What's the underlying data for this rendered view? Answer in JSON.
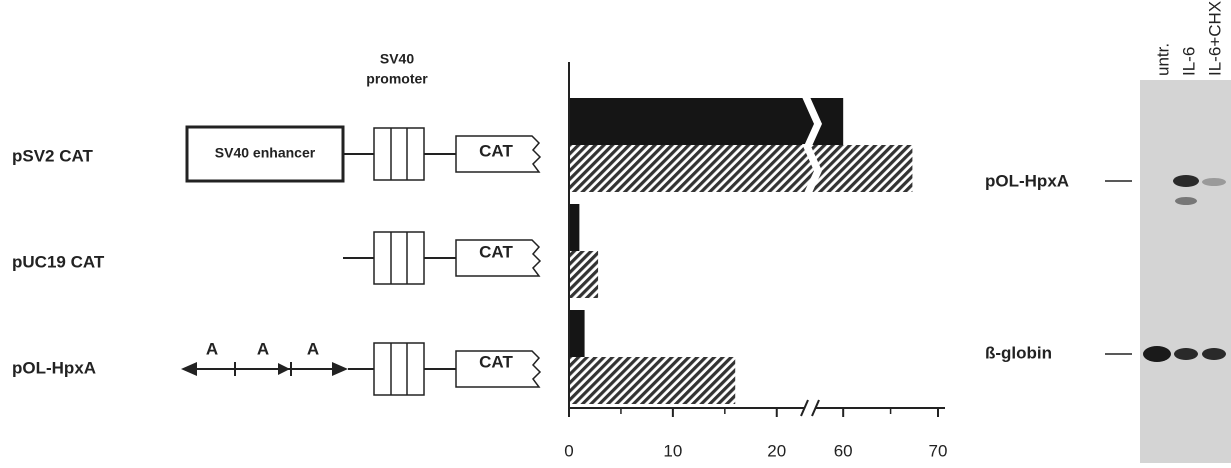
{
  "chart_data": {
    "type": "bar",
    "orientation": "horizontal",
    "categories": [
      "pSV2  CAT",
      "pUC19  CAT",
      "pOL-HpxA"
    ],
    "series": [
      {
        "color": "#151515",
        "hatch": false,
        "values": [
          60,
          1,
          1.5
        ]
      },
      {
        "color": "#333333",
        "hatch": true,
        "values": [
          67.3,
          2.8,
          16
        ]
      }
    ],
    "xlim": [
      0,
      70
    ],
    "xbreak": [
      23.2,
      56.5
    ],
    "xticks": [
      0,
      10,
      20,
      60,
      70
    ],
    "xminorticks": [
      5,
      15,
      65
    ]
  },
  "diagram": {
    "enhancer": "SV40  enhancer",
    "promoter": [
      "SV40",
      "promoter"
    ],
    "reporter": "CAT",
    "site": "A"
  },
  "gel": {
    "lanes": [
      "untr.",
      "IL-6",
      "IL-6+CHX"
    ],
    "bands": [
      "pOL-HpxA",
      "ß-globin"
    ]
  }
}
